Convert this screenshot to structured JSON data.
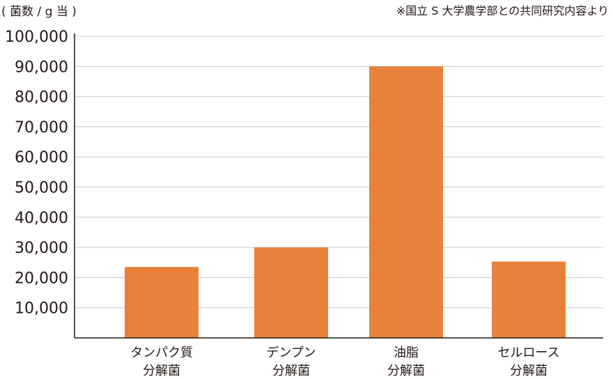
{
  "chart_data": {
    "type": "bar",
    "ylabel": "( 菌数 / g 当 )",
    "note": "※国立 S 大学農学部との共同研究内容より",
    "categories": [
      [
        "タンパク質",
        "分解菌"
      ],
      [
        "デンプン",
        "分解菌"
      ],
      [
        "油脂",
        "分解菌"
      ],
      [
        "セルロース",
        "分解菌"
      ]
    ],
    "values": [
      23500,
      30000,
      90000,
      25300
    ],
    "ylim": [
      0,
      100000
    ],
    "yticks": [
      "10,000",
      "20,000",
      "30,000",
      "40,000",
      "50,000",
      "60,000",
      "70,000",
      "80,000",
      "90,000",
      "100,000"
    ],
    "ytick_values": [
      10000,
      20000,
      30000,
      40000,
      50000,
      60000,
      70000,
      80000,
      90000,
      100000
    ],
    "grid": true,
    "bar_color": "#e8823a"
  }
}
